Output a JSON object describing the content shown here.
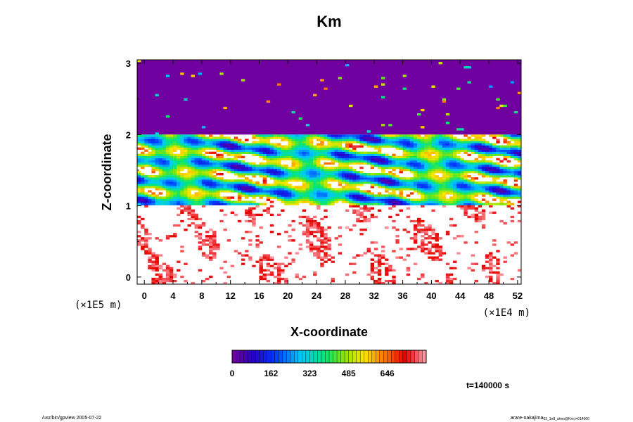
{
  "chart_data": {
    "type": "heatmap",
    "title": "Km",
    "xlabel": "X-coordinate",
    "ylabel": "Z-coordinate",
    "x_unit": "(×1E4 m)",
    "y_unit": "(×1E5 m)",
    "xlim": [
      -1,
      52.5
    ],
    "ylim": [
      -0.1,
      3.05
    ],
    "x_ticks": [
      "0",
      "4",
      "8",
      "12",
      "16",
      "20",
      "24",
      "28",
      "32",
      "36",
      "40",
      "44",
      "48",
      "52"
    ],
    "y_ticks": [
      "0",
      "1",
      "2",
      "3"
    ],
    "colorbar": {
      "min": 0,
      "max": 808,
      "tick_labels": [
        "0",
        "162",
        "323",
        "485",
        "646"
      ],
      "ticks": [
        0,
        162,
        323,
        485,
        646
      ]
    },
    "regions": [
      {
        "z_range": [
          2.0,
          3.05
        ],
        "level": "low",
        "description_value_range": [
          0,
          40
        ]
      },
      {
        "z_range": [
          1.0,
          2.0
        ],
        "level": "mixed",
        "description_value_range": [
          0,
          808
        ]
      },
      {
        "z_range": [
          -0.1,
          1.0
        ],
        "level": "high-sparse",
        "description_value_range": [
          600,
          808
        ]
      }
    ],
    "time_label": "t=140000 s"
  },
  "footer": {
    "left": "/usr/bin/gpview 2005-07-22",
    "right_main": "arare-nakajima",
    "right_sub": "03_1e8_atmo@Km,t=014000"
  }
}
